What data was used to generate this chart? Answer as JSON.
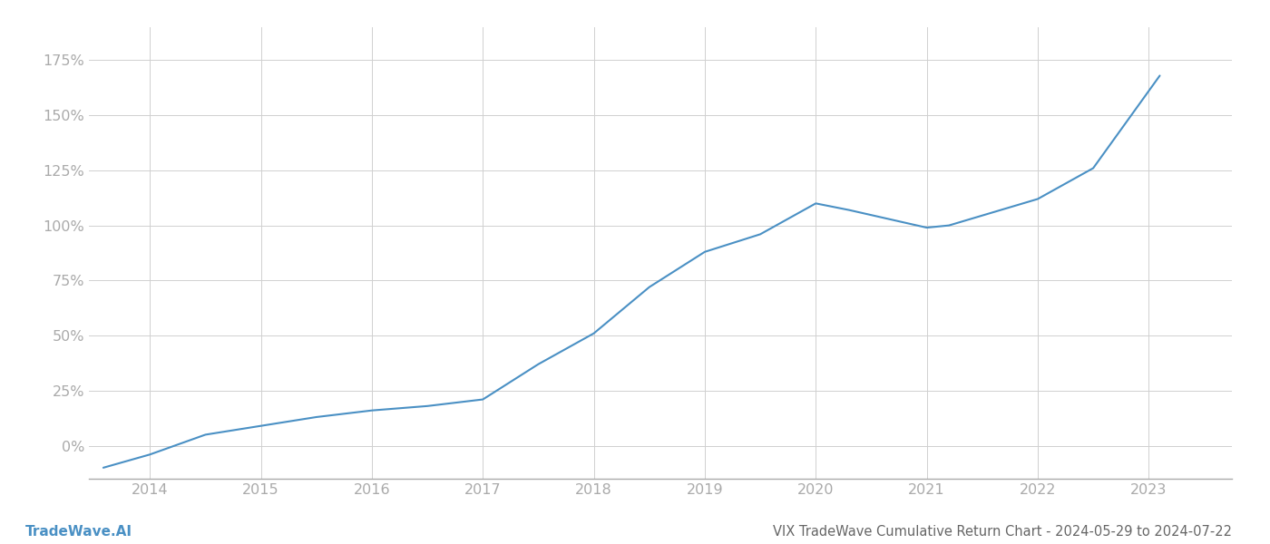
{
  "title": "VIX TradeWave Cumulative Return Chart - 2024-05-29 to 2024-07-22",
  "watermark": "TradeWave.AI",
  "line_color": "#4a90c4",
  "background_color": "#ffffff",
  "grid_color": "#d0d0d0",
  "x_years": [
    2014,
    2015,
    2016,
    2017,
    2018,
    2019,
    2020,
    2021,
    2022,
    2023
  ],
  "x_values": [
    2013.58,
    2014.0,
    2014.5,
    2015.0,
    2015.5,
    2016.0,
    2016.5,
    2017.0,
    2017.5,
    2018.0,
    2018.5,
    2019.0,
    2019.5,
    2020.0,
    2020.3,
    2021.0,
    2021.2,
    2022.0,
    2022.5,
    2023.1
  ],
  "y_values": [
    -10,
    -4,
    5,
    9,
    13,
    16,
    18,
    21,
    37,
    51,
    72,
    88,
    96,
    110,
    107,
    99,
    100,
    112,
    126,
    168
  ],
  "ylim": [
    -15,
    190
  ],
  "yticks": [
    0,
    25,
    50,
    75,
    100,
    125,
    150,
    175
  ],
  "xlim": [
    2013.45,
    2023.75
  ],
  "axis_color": "#aaaaaa",
  "tick_color": "#aaaaaa",
  "title_fontsize": 10.5,
  "watermark_fontsize": 11,
  "tick_fontsize": 11.5,
  "line_width": 1.5
}
